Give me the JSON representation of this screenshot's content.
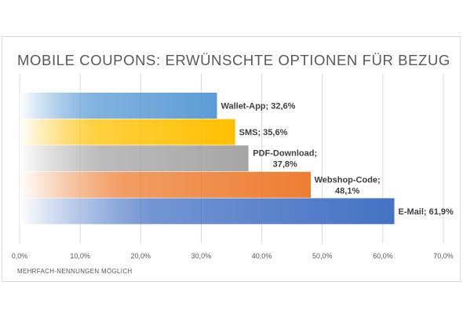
{
  "chart_data": {
    "type": "bar",
    "orientation": "horizontal",
    "title": "MOBILE COUPONS: ERWÜNSCHTE OPTIONEN FÜR BEZUG",
    "footnote": "MEHRFACH-NENNUNGEN MÖGLICH",
    "categories": [
      "Wallet-App",
      "SMS",
      "PDF-Download",
      "Webshop-Code",
      "E-Mail"
    ],
    "values": [
      32.6,
      35.6,
      37.8,
      48.1,
      61.9
    ],
    "data_labels": [
      [
        "Wallet-App; 32,6%"
      ],
      [
        "SMS; 35,6%"
      ],
      [
        "PDF-Download;",
        "37,8%"
      ],
      [
        "Webshop-Code;",
        "48,1%"
      ],
      [
        "E-Mail; 61,9%"
      ]
    ],
    "colors": [
      "#5b9bd5",
      "#ffc000",
      "#a5a5a5",
      "#ed7d31",
      "#4472c4"
    ],
    "xlim": [
      0,
      70
    ],
    "xticks": [
      0,
      10,
      20,
      30,
      40,
      50,
      60,
      70
    ],
    "xtick_labels": [
      "0,0%",
      "10,0%",
      "20,0%",
      "30,0%",
      "40,0%",
      "50,0%",
      "60,0%",
      "70,0%"
    ],
    "xlabel": "",
    "ylabel": "",
    "grid": true,
    "gradient_fill": true
  }
}
